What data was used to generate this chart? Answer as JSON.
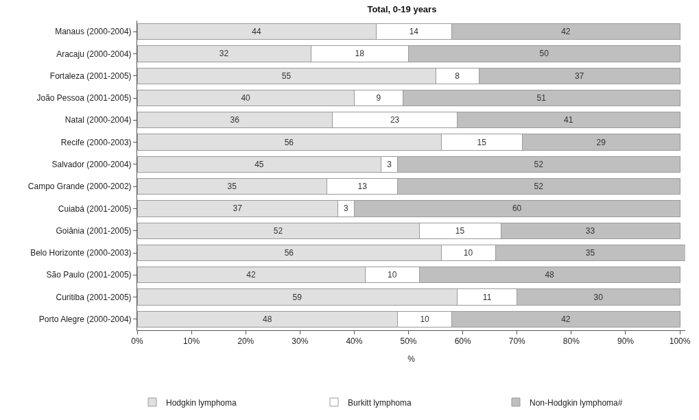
{
  "chart_data": {
    "type": "bar",
    "orientation": "horizontal",
    "stacked": true,
    "title": "Total, 0-19 years",
    "xlabel": "%",
    "categories": [
      "Manaus (2000-2004)",
      "Aracaju (2000-2004)",
      "Fortaleza (2001-2005)",
      "João Pessoa (2001-2005)",
      "Natal (2000-2004)",
      "Recife (2000-2003)",
      "Salvador (2000-2004)",
      "Campo Grande (2000-2002)",
      "Cuiabá (2001-2005)",
      "Goiânia (2001-2005)",
      "Belo Horizonte (2000-2003)",
      "São Paulo (2001-2005)",
      "Curitiba (2001-2005)",
      "Porto Alegre (2000-2004)"
    ],
    "series": [
      {
        "name": "Hodgkin lymphoma",
        "color": "#e0e0e0",
        "values": [
          44,
          32,
          55,
          40,
          36,
          56,
          45,
          35,
          37,
          52,
          56,
          42,
          59,
          48
        ]
      },
      {
        "name": "Burkitt lymphoma",
        "color": "#ffffff",
        "values": [
          14,
          18,
          8,
          9,
          23,
          15,
          3,
          13,
          3,
          15,
          10,
          10,
          11,
          10
        ]
      },
      {
        "name": "Non-Hodgkin lymphoma#",
        "color": "#bfbfbf",
        "values": [
          42,
          50,
          37,
          51,
          41,
          29,
          52,
          52,
          60,
          33,
          35,
          48,
          30,
          42
        ]
      }
    ],
    "xlim": [
      0,
      101
    ],
    "xticks": [
      {
        "value": 0,
        "label": "0%"
      },
      {
        "value": 10,
        "label": "10%"
      },
      {
        "value": 20,
        "label": "20%"
      },
      {
        "value": 30,
        "label": "30%"
      },
      {
        "value": 40,
        "label": "40%"
      },
      {
        "value": 50,
        "label": "50%"
      },
      {
        "value": 60,
        "label": "60%"
      },
      {
        "value": 70,
        "label": "70%"
      },
      {
        "value": 80,
        "label": "80%"
      },
      {
        "value": 90,
        "label": "90%"
      },
      {
        "value": 100,
        "label": "100%"
      }
    ],
    "data_labels": true,
    "legend": "bottom",
    "grid": false
  }
}
